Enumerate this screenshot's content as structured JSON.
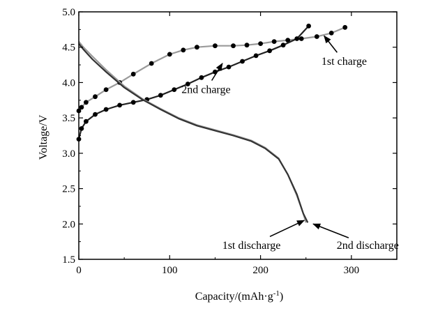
{
  "chart_data": {
    "type": "line",
    "xlabel": "Capacity/(mAh·g",
    "xlabel_sup": "-1",
    "xlabel_close": ")",
    "ylabel": "Voltage/V",
    "xlim": [
      0,
      350
    ],
    "ylim": [
      1.5,
      5.0
    ],
    "xticks": [
      0,
      100,
      200,
      300
    ],
    "xtick_labels": [
      "0",
      "100",
      "200",
      "300"
    ],
    "yticks": [
      1.5,
      2.0,
      2.5,
      3.0,
      3.5,
      4.0,
      4.5,
      5.0
    ],
    "ytick_labels": [
      "1.5",
      "2.0",
      "2.5",
      "3.0",
      "3.5",
      "4.0",
      "4.5",
      "5.0"
    ],
    "grid": false,
    "series": [
      {
        "name": "1st charge",
        "color": "#9a9a9a",
        "markers": true,
        "points": [
          [
            0,
            3.6
          ],
          [
            3,
            3.65
          ],
          [
            8,
            3.72
          ],
          [
            18,
            3.8
          ],
          [
            30,
            3.9
          ],
          [
            45,
            4.0
          ],
          [
            60,
            4.12
          ],
          [
            80,
            4.27
          ],
          [
            100,
            4.4
          ],
          [
            115,
            4.46
          ],
          [
            130,
            4.5
          ],
          [
            150,
            4.52
          ],
          [
            170,
            4.52
          ],
          [
            185,
            4.53
          ],
          [
            200,
            4.55
          ],
          [
            215,
            4.58
          ],
          [
            230,
            4.6
          ],
          [
            245,
            4.62
          ],
          [
            262,
            4.65
          ],
          [
            278,
            4.7
          ],
          [
            293,
            4.78
          ]
        ]
      },
      {
        "name": "2nd charge",
        "color": "#222222",
        "markers": true,
        "points": [
          [
            0,
            3.2
          ],
          [
            3,
            3.35
          ],
          [
            8,
            3.45
          ],
          [
            18,
            3.55
          ],
          [
            30,
            3.62
          ],
          [
            45,
            3.68
          ],
          [
            60,
            3.72
          ],
          [
            75,
            3.76
          ],
          [
            90,
            3.82
          ],
          [
            105,
            3.9
          ],
          [
            120,
            3.98
          ],
          [
            135,
            4.07
          ],
          [
            150,
            4.15
          ],
          [
            165,
            4.22
          ],
          [
            180,
            4.3
          ],
          [
            195,
            4.38
          ],
          [
            210,
            4.45
          ],
          [
            225,
            4.53
          ],
          [
            240,
            4.62
          ],
          [
            253,
            4.8
          ]
        ]
      },
      {
        "name": "1st discharge",
        "color": "#9a9a9a",
        "markers": false,
        "points": [
          [
            0,
            4.58
          ],
          [
            5,
            4.5
          ],
          [
            15,
            4.37
          ],
          [
            30,
            4.18
          ],
          [
            50,
            3.95
          ],
          [
            70,
            3.77
          ],
          [
            90,
            3.63
          ],
          [
            110,
            3.5
          ],
          [
            130,
            3.4
          ],
          [
            150,
            3.33
          ],
          [
            170,
            3.26
          ],
          [
            190,
            3.18
          ],
          [
            205,
            3.08
          ],
          [
            220,
            2.93
          ],
          [
            230,
            2.7
          ],
          [
            240,
            2.4
          ],
          [
            247,
            2.15
          ],
          [
            250,
            2.02
          ]
        ]
      },
      {
        "name": "2nd discharge",
        "color": "#333333",
        "markers": false,
        "points": [
          [
            0,
            4.55
          ],
          [
            5,
            4.47
          ],
          [
            15,
            4.33
          ],
          [
            30,
            4.15
          ],
          [
            50,
            3.93
          ],
          [
            70,
            3.76
          ],
          [
            90,
            3.62
          ],
          [
            110,
            3.49
          ],
          [
            130,
            3.39
          ],
          [
            150,
            3.32
          ],
          [
            170,
            3.25
          ],
          [
            190,
            3.17
          ],
          [
            205,
            3.07
          ],
          [
            220,
            2.92
          ],
          [
            230,
            2.7
          ],
          [
            240,
            2.42
          ],
          [
            247,
            2.15
          ],
          [
            252,
            2.02
          ]
        ]
      }
    ],
    "annotations": [
      {
        "text": "1st charge",
        "target": [
          270,
          4.66
        ],
        "text_at": [
          292,
          4.25
        ]
      },
      {
        "text": "2nd charge",
        "target": [
          158,
          4.27
        ],
        "text_at": [
          140,
          3.85
        ]
      },
      {
        "text": "1st discharge",
        "target": [
          248,
          2.05
        ],
        "text_at": [
          190,
          1.65
        ]
      },
      {
        "text": "2nd discharge",
        "target": [
          258,
          2.0
        ],
        "text_at": [
          318,
          1.65
        ]
      }
    ]
  }
}
